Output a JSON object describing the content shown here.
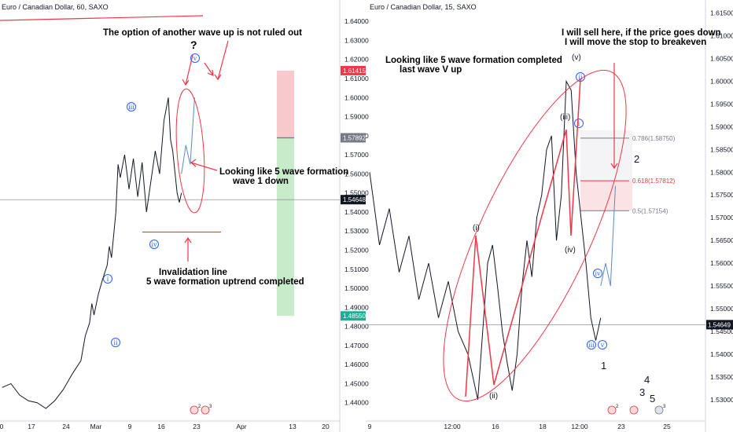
{
  "chart_data": [
    {
      "type": "line",
      "title": "Euro / Canadian Dollar, 60, SAXO",
      "x_ticks": [
        "0",
        "17",
        "24",
        "Mar",
        "9",
        "16",
        "23",
        "Apr",
        "13",
        "20"
      ],
      "y_ticks": [
        "1.64000",
        "1.63000",
        "1.62000",
        "1.61000",
        "1.60000",
        "1.59000",
        "1.58000",
        "1.57000",
        "1.56000",
        "1.55000",
        "1.54000",
        "1.53000",
        "1.52000",
        "1.51000",
        "1.50000",
        "1.49000",
        "1.48000",
        "1.47000",
        "1.46000",
        "1.45000",
        "1.44000"
      ],
      "ylim": [
        1.437,
        1.645
      ],
      "price_tags": [
        {
          "label": "1.61415",
          "color": "#f23645"
        },
        {
          "label": "1.57892",
          "color": "#787b86"
        },
        {
          "label": "1.54648",
          "color": "#131722"
        },
        {
          "label": "05:06",
          "color": "#131722"
        },
        {
          "label": "1.48550",
          "color": "#22ab94"
        }
      ],
      "annotations": [
        "The option of another wave up is not ruled out",
        "?",
        "Looking like 5 wave formation",
        "wave 1 down",
        "Invalidation line",
        "5 wave formation uptrend completed"
      ],
      "wave_labels": [
        "i",
        "ii",
        "iii",
        "iv",
        "v"
      ],
      "price_path": [
        [
          0,
          1.448
        ],
        [
          2,
          1.45
        ],
        [
          4,
          1.444
        ],
        [
          6,
          1.441
        ],
        [
          8,
          1.44
        ],
        [
          10,
          1.437
        ],
        [
          12,
          1.441
        ],
        [
          14,
          1.447
        ],
        [
          16,
          1.455
        ],
        [
          18,
          1.462
        ],
        [
          19,
          1.475
        ],
        [
          20,
          1.482
        ],
        [
          20.5,
          1.492
        ],
        [
          21,
          1.486
        ],
        [
          22,
          1.497
        ],
        [
          23,
          1.505
        ],
        [
          24,
          1.512
        ],
        [
          24.5,
          1.522
        ],
        [
          25,
          1.516
        ],
        [
          26,
          1.54
        ],
        [
          26.5,
          1.565
        ],
        [
          27,
          1.558
        ],
        [
          28,
          1.57
        ],
        [
          29,
          1.552
        ],
        [
          30,
          1.568
        ],
        [
          31,
          1.548
        ],
        [
          32,
          1.566
        ],
        [
          33,
          1.54
        ],
        [
          34,
          1.556
        ],
        [
          35,
          1.572
        ],
        [
          36,
          1.56
        ],
        [
          37,
          1.588
        ],
        [
          38,
          1.6
        ],
        [
          38.5,
          1.578
        ],
        [
          39,
          1.572
        ],
        [
          40,
          1.55
        ],
        [
          40.5,
          1.545
        ],
        [
          41,
          1.55
        ]
      ],
      "projection": [
        [
          41,
          1.56
        ],
        [
          42,
          1.575
        ],
        [
          43,
          1.565
        ],
        [
          44,
          1.6
        ]
      ],
      "invalidation_line": 1.5295,
      "risk_zone": [
        1.57892,
        1.61415
      ],
      "reward_zone": [
        1.4855,
        1.57892
      ]
    },
    {
      "type": "line",
      "title": "Euro / Canadian Dollar, 15, SAXO",
      "x_ticks": [
        "9",
        "12:00",
        "16",
        "18",
        "12:00",
        "23",
        "25"
      ],
      "y_ticks": [
        "1.61500",
        "1.61000",
        "1.60500",
        "1.60000",
        "1.59500",
        "1.59000",
        "1.58500",
        "1.58000",
        "1.57500",
        "1.57000",
        "1.56500",
        "1.56000",
        "1.55500",
        "1.55000",
        "1.54500",
        "1.54000",
        "1.53500",
        "1.53000"
      ],
      "ylim": [
        1.526,
        1.617
      ],
      "price_tags": [
        {
          "label": "1.54649",
          "color": "#131722"
        },
        {
          "label": "05:06",
          "color": "#131722"
        }
      ],
      "annotations": [
        "I will sell here, if the price goes down",
        "I will move the stop to breakeven",
        "Looking like 5 wave formation completed",
        "last wave V up"
      ],
      "wave_labels": [
        "(i)",
        "(ii)",
        "(iii)",
        "(iv)",
        "(v)",
        "2",
        "1",
        "3",
        "4",
        "5"
      ],
      "circle_labels": [
        "ii",
        "i",
        "iii",
        "iv",
        "v"
      ],
      "fib_levels": [
        {
          "label": "0.786(1.58750)",
          "value": 1.5875,
          "color": "#787b86"
        },
        {
          "label": "0.618(1.57812)",
          "value": 1.57812,
          "color": "#f23645"
        },
        {
          "label": "0.5(1.57154)",
          "value": 1.57154,
          "color": "#787b86"
        }
      ],
      "price_path": [
        [
          0,
          1.58
        ],
        [
          2,
          1.564
        ],
        [
          4,
          1.572
        ],
        [
          6,
          1.558
        ],
        [
          8,
          1.566
        ],
        [
          10,
          1.552
        ],
        [
          12,
          1.56
        ],
        [
          14,
          1.548
        ],
        [
          16,
          1.556
        ],
        [
          18,
          1.545
        ],
        [
          20,
          1.54
        ],
        [
          21,
          1.535
        ],
        [
          22,
          1.53
        ],
        [
          23,
          1.545
        ],
        [
          24,
          1.56
        ],
        [
          25,
          1.564
        ],
        [
          26,
          1.555
        ],
        [
          27,
          1.545
        ],
        [
          28,
          1.538
        ],
        [
          29,
          1.532
        ],
        [
          30,
          1.54
        ],
        [
          31,
          1.555
        ],
        [
          32,
          1.565
        ],
        [
          33,
          1.557
        ],
        [
          34,
          1.57
        ],
        [
          35,
          1.575
        ],
        [
          36,
          1.585
        ],
        [
          37,
          1.588
        ],
        [
          38,
          1.565
        ],
        [
          39,
          1.575
        ],
        [
          40,
          1.6
        ],
        [
          41,
          1.598
        ],
        [
          42,
          1.58
        ],
        [
          43,
          1.57
        ],
        [
          44,
          1.56
        ],
        [
          45,
          1.548
        ],
        [
          46,
          1.543
        ],
        [
          47,
          1.548
        ]
      ],
      "projection": [
        [
          47,
          1.555
        ],
        [
          48,
          1.56
        ],
        [
          49,
          1.555
        ],
        [
          50,
          1.577
        ]
      ]
    }
  ],
  "event_badges": [
    "2",
    "3",
    "2",
    "3"
  ]
}
